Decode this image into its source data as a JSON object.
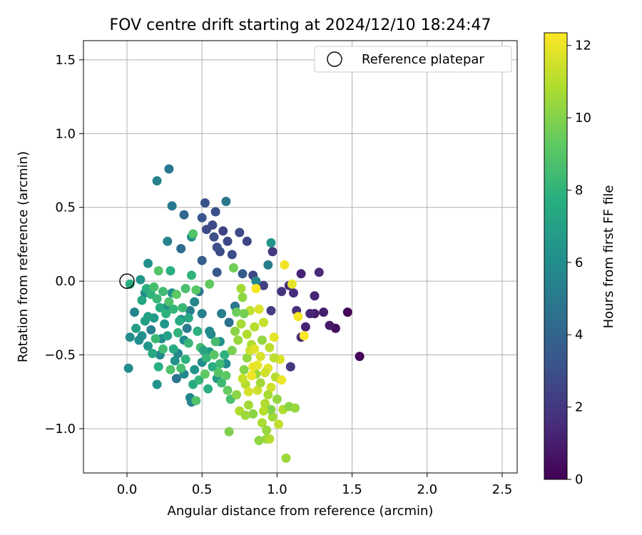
{
  "chart_data": {
    "type": "scatter",
    "title": "FOV centre drift starting at 2024/12/10 18:24:47",
    "xlabel": "Angular distance from reference (arcmin)",
    "ylabel": "Rotation from reference (arcmin)",
    "xlim": [
      -0.29,
      2.6
    ],
    "ylim": [
      -1.3,
      1.63
    ],
    "xticks": [
      0.0,
      0.5,
      1.0,
      1.5,
      2.0,
      2.5
    ],
    "xtick_labels": [
      "0.0",
      "0.5",
      "1.0",
      "1.5",
      "2.0",
      "2.5"
    ],
    "yticks": [
      1.5,
      1.0,
      0.5,
      0.0,
      -0.5,
      -1.0
    ],
    "ytick_labels": [
      "1.5",
      "1.0",
      "0.5",
      "0.0",
      "−0.5",
      "−1.0"
    ],
    "grid": true,
    "legend": {
      "position": "top-right",
      "label": "Reference platepar"
    },
    "reference_point": {
      "x": 0.0,
      "y": 0.0
    },
    "colorbar": {
      "label": "Hours from first FF file",
      "colormap": "viridis",
      "range": [
        0,
        12.35
      ],
      "ticks": [
        0,
        2,
        4,
        6,
        8,
        10,
        12
      ],
      "tick_labels": [
        "0",
        "2",
        "4",
        "6",
        "8",
        "10",
        "12"
      ]
    },
    "points": [
      {
        "x": 1.55,
        "y": -0.51,
        "c": 0.1
      },
      {
        "x": 1.47,
        "y": -0.21,
        "c": 0.2
      },
      {
        "x": 1.39,
        "y": -0.32,
        "c": 0.5
      },
      {
        "x": 1.35,
        "y": -0.3,
        "c": 0.9
      },
      {
        "x": 1.31,
        "y": -0.21,
        "c": 1.1
      },
      {
        "x": 1.25,
        "y": -0.22,
        "c": 1.0
      },
      {
        "x": 1.19,
        "y": -0.31,
        "c": 1.2
      },
      {
        "x": 1.16,
        "y": -0.38,
        "c": 1.4
      },
      {
        "x": 1.22,
        "y": -0.22,
        "c": 1.3
      },
      {
        "x": 1.25,
        "y": -0.1,
        "c": 1.3
      },
      {
        "x": 1.28,
        "y": 0.06,
        "c": 1.5
      },
      {
        "x": 1.16,
        "y": 0.05,
        "c": 1.2
      },
      {
        "x": 1.11,
        "y": -0.08,
        "c": 1.6
      },
      {
        "x": 1.03,
        "y": -0.07,
        "c": 1.8
      },
      {
        "x": 1.13,
        "y": -0.2,
        "c": 1.7
      },
      {
        "x": 1.09,
        "y": -0.58,
        "c": 2.0
      },
      {
        "x": 0.97,
        "y": 0.2,
        "c": 1.9
      },
      {
        "x": 0.96,
        "y": -0.2,
        "c": 2.2
      },
      {
        "x": 0.91,
        "y": -0.03,
        "c": 2.4
      },
      {
        "x": 1.08,
        "y": -0.03,
        "c": 1.5
      },
      {
        "x": 0.84,
        "y": 0.04,
        "c": 2.6
      },
      {
        "x": 0.8,
        "y": 0.27,
        "c": 2.6
      },
      {
        "x": 0.75,
        "y": 0.33,
        "c": 2.8
      },
      {
        "x": 0.7,
        "y": 0.18,
        "c": 2.9
      },
      {
        "x": 0.67,
        "y": 0.27,
        "c": 2.7
      },
      {
        "x": 0.64,
        "y": 0.34,
        "c": 2.4
      },
      {
        "x": 0.62,
        "y": 0.2,
        "c": 2.8
      },
      {
        "x": 0.6,
        "y": 0.23,
        "c": 3.0
      },
      {
        "x": 0.58,
        "y": 0.3,
        "c": 3.0
      },
      {
        "x": 0.57,
        "y": 0.38,
        "c": 2.8
      },
      {
        "x": 0.59,
        "y": 0.47,
        "c": 2.9
      },
      {
        "x": 0.53,
        "y": 0.35,
        "c": 2.7
      },
      {
        "x": 0.52,
        "y": 0.53,
        "c": 3.2
      },
      {
        "x": 0.5,
        "y": 0.43,
        "c": 3.4
      },
      {
        "x": 0.5,
        "y": 0.14,
        "c": 3.6
      },
      {
        "x": 0.6,
        "y": 0.06,
        "c": 3.4
      },
      {
        "x": 0.77,
        "y": 0.05,
        "c": 3.5
      },
      {
        "x": 0.66,
        "y": 0.54,
        "c": 4.9
      },
      {
        "x": 0.38,
        "y": 0.45,
        "c": 4.2
      },
      {
        "x": 0.36,
        "y": 0.22,
        "c": 4.4
      },
      {
        "x": 0.28,
        "y": 0.76,
        "c": 4.9
      },
      {
        "x": 0.2,
        "y": 0.68,
        "c": 5.5
      },
      {
        "x": 0.3,
        "y": 0.51,
        "c": 5.0
      },
      {
        "x": 0.27,
        "y": 0.27,
        "c": 5.5
      },
      {
        "x": 0.43,
        "y": 0.3,
        "c": 6.0
      },
      {
        "x": 0.14,
        "y": 0.12,
        "c": 6.1
      },
      {
        "x": 0.12,
        "y": -0.08,
        "c": 6.0
      },
      {
        "x": 0.09,
        "y": 0.01,
        "c": 6.4
      },
      {
        "x": 0.05,
        "y": -0.21,
        "c": 5.6
      },
      {
        "x": 0.02,
        "y": -0.38,
        "c": 6.0
      },
      {
        "x": 0.01,
        "y": -0.59,
        "c": 5.9
      },
      {
        "x": 0.96,
        "y": 0.26,
        "c": 6.5
      },
      {
        "x": 0.94,
        "y": 0.11,
        "c": 5.2
      },
      {
        "x": 0.86,
        "y": 0.0,
        "c": 5.6
      },
      {
        "x": 0.72,
        "y": -0.17,
        "c": 4.8
      },
      {
        "x": 0.68,
        "y": -0.28,
        "c": 4.5
      },
      {
        "x": 0.63,
        "y": -0.22,
        "c": 5.2
      },
      {
        "x": 0.55,
        "y": -0.34,
        "c": 5.8
      },
      {
        "x": 0.5,
        "y": -0.22,
        "c": 5.4
      },
      {
        "x": 0.48,
        "y": -0.07,
        "c": 4.7
      },
      {
        "x": 0.45,
        "y": -0.14,
        "c": 5.6
      },
      {
        "x": 0.42,
        "y": -0.2,
        "c": 5.3
      },
      {
        "x": 0.4,
        "y": -0.32,
        "c": 5.1
      },
      {
        "x": 0.38,
        "y": -0.4,
        "c": 5.9
      },
      {
        "x": 0.36,
        "y": -0.26,
        "c": 6.0
      },
      {
        "x": 0.34,
        "y": -0.49,
        "c": 5.7
      },
      {
        "x": 0.32,
        "y": -0.54,
        "c": 6.3
      },
      {
        "x": 0.3,
        "y": -0.08,
        "c": 6.2
      },
      {
        "x": 0.27,
        "y": -0.17,
        "c": 5.9
      },
      {
        "x": 0.25,
        "y": -0.29,
        "c": 6.4
      },
      {
        "x": 0.23,
        "y": -0.39,
        "c": 6.1
      },
      {
        "x": 0.22,
        "y": -0.5,
        "c": 5.8
      },
      {
        "x": 0.2,
        "y": -0.7,
        "c": 6.3
      },
      {
        "x": 0.18,
        "y": -0.25,
        "c": 6.6
      },
      {
        "x": 0.16,
        "y": -0.33,
        "c": 5.4
      },
      {
        "x": 0.14,
        "y": -0.44,
        "c": 6.5
      },
      {
        "x": 0.12,
        "y": -0.27,
        "c": 6.8
      },
      {
        "x": 0.1,
        "y": -0.37,
        "c": 6.2
      },
      {
        "x": 0.08,
        "y": -0.4,
        "c": 6.0
      },
      {
        "x": 0.06,
        "y": -0.32,
        "c": 6.9
      },
      {
        "x": 0.33,
        "y": -0.66,
        "c": 4.8
      },
      {
        "x": 0.42,
        "y": -0.79,
        "c": 5.7
      },
      {
        "x": 0.43,
        "y": -0.82,
        "c": 5.5
      },
      {
        "x": 0.38,
        "y": -0.63,
        "c": 5.8
      },
      {
        "x": 0.45,
        "y": -0.6,
        "c": 6.4
      },
      {
        "x": 0.5,
        "y": -0.55,
        "c": 6.1
      },
      {
        "x": 0.55,
        "y": -0.48,
        "c": 6.5
      },
      {
        "x": 0.6,
        "y": -0.66,
        "c": 6.7
      },
      {
        "x": 0.56,
        "y": -0.36,
        "c": 5.8
      },
      {
        "x": 0.62,
        "y": -0.41,
        "c": 6.2
      },
      {
        "x": 0.66,
        "y": -0.56,
        "c": 6.0
      },
      {
        "x": 0.02,
        "y": -0.02,
        "c": 7.6
      },
      {
        "x": 0.1,
        "y": -0.13,
        "c": 7.3
      },
      {
        "x": 0.13,
        "y": -0.05,
        "c": 7.8
      },
      {
        "x": 0.16,
        "y": -0.09,
        "c": 8.0
      },
      {
        "x": 0.18,
        "y": -0.04,
        "c": 8.6
      },
      {
        "x": 0.2,
        "y": -0.12,
        "c": 8.2
      },
      {
        "x": 0.21,
        "y": 0.07,
        "c": 9.0
      },
      {
        "x": 0.22,
        "y": -0.18,
        "c": 7.5
      },
      {
        "x": 0.24,
        "y": -0.07,
        "c": 8.4
      },
      {
        "x": 0.26,
        "y": -0.22,
        "c": 7.9
      },
      {
        "x": 0.28,
        "y": -0.14,
        "c": 8.8
      },
      {
        "x": 0.29,
        "y": 0.07,
        "c": 7.7
      },
      {
        "x": 0.31,
        "y": -0.19,
        "c": 8.1
      },
      {
        "x": 0.33,
        "y": -0.09,
        "c": 9.2
      },
      {
        "x": 0.35,
        "y": -0.27,
        "c": 7.6
      },
      {
        "x": 0.37,
        "y": -0.18,
        "c": 8.3
      },
      {
        "x": 0.39,
        "y": -0.05,
        "c": 8.7
      },
      {
        "x": 0.41,
        "y": -0.25,
        "c": 7.4
      },
      {
        "x": 0.43,
        "y": 0.04,
        "c": 8.0
      },
      {
        "x": 0.44,
        "y": 0.32,
        "c": 8.9
      },
      {
        "x": 0.46,
        "y": -0.06,
        "c": 9.1
      },
      {
        "x": 0.47,
        "y": -0.34,
        "c": 7.8
      },
      {
        "x": 0.49,
        "y": -0.45,
        "c": 8.5
      },
      {
        "x": 0.51,
        "y": -0.47,
        "c": 7.2
      },
      {
        "x": 0.53,
        "y": -0.52,
        "c": 8.1
      },
      {
        "x": 0.55,
        "y": -0.02,
        "c": 9.3
      },
      {
        "x": 0.57,
        "y": -0.58,
        "c": 7.7
      },
      {
        "x": 0.59,
        "y": -0.41,
        "c": 8.6
      },
      {
        "x": 0.61,
        "y": -0.62,
        "c": 9.0
      },
      {
        "x": 0.63,
        "y": -0.69,
        "c": 8.3
      },
      {
        "x": 0.65,
        "y": -0.5,
        "c": 7.9
      },
      {
        "x": 0.67,
        "y": -0.74,
        "c": 9.4
      },
      {
        "x": 0.69,
        "y": -0.8,
        "c": 8.7
      },
      {
        "x": 0.71,
        "y": 0.09,
        "c": 9.6
      },
      {
        "x": 0.73,
        "y": -0.21,
        "c": 9.5
      },
      {
        "x": 0.14,
        "y": -0.24,
        "c": 7.0
      },
      {
        "x": 0.17,
        "y": -0.49,
        "c": 7.4
      },
      {
        "x": 0.19,
        "y": -0.39,
        "c": 8.3
      },
      {
        "x": 0.21,
        "y": -0.58,
        "c": 7.7
      },
      {
        "x": 0.24,
        "y": -0.46,
        "c": 8.5
      },
      {
        "x": 0.27,
        "y": -0.37,
        "c": 7.1
      },
      {
        "x": 0.29,
        "y": -0.6,
        "c": 8.8
      },
      {
        "x": 0.31,
        "y": -0.46,
        "c": 7.5
      },
      {
        "x": 0.34,
        "y": -0.35,
        "c": 8.0
      },
      {
        "x": 0.36,
        "y": -0.59,
        "c": 8.6
      },
      {
        "x": 0.39,
        "y": -0.53,
        "c": 7.9
      },
      {
        "x": 0.41,
        "y": -0.42,
        "c": 8.2
      },
      {
        "x": 0.44,
        "y": -0.7,
        "c": 7.6
      },
      {
        "x": 0.46,
        "y": -0.81,
        "c": 8.9
      },
      {
        "x": 0.48,
        "y": -0.67,
        "c": 8.1
      },
      {
        "x": 0.52,
        "y": -0.63,
        "c": 9.3
      },
      {
        "x": 0.54,
        "y": -0.73,
        "c": 7.8
      },
      {
        "x": 0.58,
        "y": -0.5,
        "c": 9.1
      },
      {
        "x": 0.62,
        "y": -0.56,
        "c": 8.4
      },
      {
        "x": 0.66,
        "y": -0.64,
        "c": 9.2
      },
      {
        "x": 0.68,
        "y": -1.02,
        "c": 9.9
      },
      {
        "x": 0.7,
        "y": -0.47,
        "c": 9.8
      },
      {
        "x": 0.72,
        "y": -0.34,
        "c": 10.1
      },
      {
        "x": 0.74,
        "y": -0.4,
        "c": 10.4
      },
      {
        "x": 0.76,
        "y": -0.29,
        "c": 10.7
      },
      {
        "x": 0.77,
        "y": -0.11,
        "c": 10.2
      },
      {
        "x": 0.78,
        "y": -0.6,
        "c": 10.0
      },
      {
        "x": 0.79,
        "y": -0.7,
        "c": 10.9
      },
      {
        "x": 0.8,
        "y": -0.52,
        "c": 10.3
      },
      {
        "x": 0.81,
        "y": -0.84,
        "c": 10.6
      },
      {
        "x": 0.82,
        "y": -0.2,
        "c": 11.2
      },
      {
        "x": 0.83,
        "y": -0.43,
        "c": 10.8
      },
      {
        "x": 0.84,
        "y": -0.9,
        "c": 10.1
      },
      {
        "x": 0.85,
        "y": -0.31,
        "c": 11.0
      },
      {
        "x": 0.86,
        "y": -0.63,
        "c": 10.5
      },
      {
        "x": 0.87,
        "y": -0.74,
        "c": 11.4
      },
      {
        "x": 0.88,
        "y": -1.08,
        "c": 10.2
      },
      {
        "x": 0.89,
        "y": -0.51,
        "c": 11.6
      },
      {
        "x": 0.9,
        "y": -0.96,
        "c": 10.7
      },
      {
        "x": 0.91,
        "y": -0.28,
        "c": 11.3
      },
      {
        "x": 0.92,
        "y": -0.83,
        "c": 10.9
      },
      {
        "x": 0.93,
        "y": -1.01,
        "c": 10.4
      },
      {
        "x": 0.94,
        "y": -0.59,
        "c": 11.8
      },
      {
        "x": 0.95,
        "y": -0.45,
        "c": 11.1
      },
      {
        "x": 0.96,
        "y": -0.72,
        "c": 11.5
      },
      {
        "x": 0.97,
        "y": -0.92,
        "c": 10.6
      },
      {
        "x": 0.98,
        "y": -0.38,
        "c": 11.9
      },
      {
        "x": 0.99,
        "y": -0.65,
        "c": 11.0
      },
      {
        "x": 1.0,
        "y": -0.8,
        "c": 10.3
      },
      {
        "x": 1.01,
        "y": -0.97,
        "c": 11.2
      },
      {
        "x": 1.02,
        "y": -0.53,
        "c": 11.7
      },
      {
        "x": 1.03,
        "y": -0.67,
        "c": 12.0
      },
      {
        "x": 1.04,
        "y": -0.87,
        "c": 10.8
      },
      {
        "x": 1.05,
        "y": 0.11,
        "c": 12.1
      },
      {
        "x": 1.06,
        "y": -1.2,
        "c": 10.5
      },
      {
        "x": 1.08,
        "y": -0.85,
        "c": 10.1
      },
      {
        "x": 1.1,
        "y": -0.02,
        "c": 11.9
      },
      {
        "x": 1.12,
        "y": -0.86,
        "c": 10.4
      },
      {
        "x": 1.14,
        "y": -0.24,
        "c": 12.2
      },
      {
        "x": 1.18,
        "y": -0.37,
        "c": 12.3
      },
      {
        "x": 0.76,
        "y": -0.05,
        "c": 10.6
      },
      {
        "x": 0.78,
        "y": -0.22,
        "c": 9.7
      },
      {
        "x": 0.8,
        "y": -0.36,
        "c": 10.9
      },
      {
        "x": 0.82,
        "y": -0.47,
        "c": 11.4
      },
      {
        "x": 0.84,
        "y": -0.58,
        "c": 12.0
      },
      {
        "x": 0.86,
        "y": -0.05,
        "c": 12.3
      },
      {
        "x": 0.88,
        "y": -0.19,
        "c": 11.7
      },
      {
        "x": 0.9,
        "y": -0.4,
        "c": 10.3
      },
      {
        "x": 0.92,
        "y": -0.62,
        "c": 11.5
      },
      {
        "x": 0.94,
        "y": -0.77,
        "c": 10.7
      },
      {
        "x": 0.96,
        "y": -0.87,
        "c": 10.0
      },
      {
        "x": 0.98,
        "y": -0.52,
        "c": 11.1
      },
      {
        "x": 0.73,
        "y": -0.77,
        "c": 10.2
      },
      {
        "x": 0.75,
        "y": -0.88,
        "c": 10.8
      },
      {
        "x": 0.77,
        "y": -0.66,
        "c": 11.3
      },
      {
        "x": 0.79,
        "y": -0.91,
        "c": 10.5
      },
      {
        "x": 0.81,
        "y": -0.75,
        "c": 11.6
      },
      {
        "x": 0.83,
        "y": -0.64,
        "c": 12.1
      },
      {
        "x": 0.85,
        "y": -0.46,
        "c": 11.8
      },
      {
        "x": 0.87,
        "y": -0.57,
        "c": 11.9
      },
      {
        "x": 0.89,
        "y": -0.69,
        "c": 10.6
      },
      {
        "x": 0.91,
        "y": -0.88,
        "c": 11.0
      },
      {
        "x": 0.93,
        "y": -1.07,
        "c": 10.4
      },
      {
        "x": 0.95,
        "y": -1.07,
        "c": 10.9
      }
    ]
  }
}
